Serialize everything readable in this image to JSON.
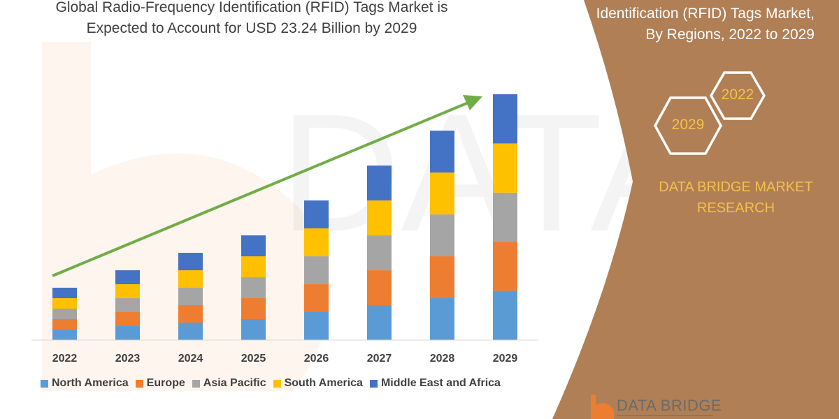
{
  "header": {
    "title_line1": "Global Radio-Frequency Identification (RFID) Tags Market is",
    "title_line2": "Expected to Account for USD 23.24 Billion by 2029"
  },
  "side_panel": {
    "title_line1": "Identification (RFID) Tags Market,",
    "title_line2": "By Regions, 2022 to 2029",
    "hex_years": [
      "2022",
      "2029"
    ],
    "brand_line1": "DATA BRIDGE MARKET",
    "brand_line2": "RESEARCH",
    "logo_text": "DATA BRIDGE",
    "panel_color": "#b07f55",
    "accent_color": "#f5c04a"
  },
  "chart_data": {
    "type": "bar",
    "stacked": true,
    "categories": [
      "2022",
      "2023",
      "2024",
      "2025",
      "2026",
      "2027",
      "2028",
      "2029"
    ],
    "series": [
      {
        "name": "North America",
        "color": "#5b9bd5",
        "values": [
          0.99,
          1.32,
          1.65,
          1.98,
          2.64,
          3.3,
          3.96,
          4.65
        ]
      },
      {
        "name": "Europe",
        "color": "#ed7d31",
        "values": [
          0.99,
          1.32,
          1.65,
          1.98,
          2.64,
          3.3,
          3.96,
          4.65
        ]
      },
      {
        "name": "Asia Pacific",
        "color": "#a5a5a5",
        "values": [
          0.99,
          1.32,
          1.65,
          1.98,
          2.64,
          3.3,
          3.96,
          4.64
        ]
      },
      {
        "name": "South America",
        "color": "#ffc000",
        "values": [
          0.99,
          1.32,
          1.65,
          1.98,
          2.64,
          3.3,
          3.96,
          4.65
        ]
      },
      {
        "name": "Middle East and Africa",
        "color": "#4472c4",
        "values": [
          0.99,
          1.32,
          1.65,
          1.98,
          2.64,
          3.3,
          3.96,
          4.65
        ]
      }
    ],
    "ylim": [
      0,
      23.24
    ],
    "y_axis_shown": false,
    "grid": false,
    "legend_position": "bottom",
    "trend_arrow_color": "#70ad47"
  }
}
